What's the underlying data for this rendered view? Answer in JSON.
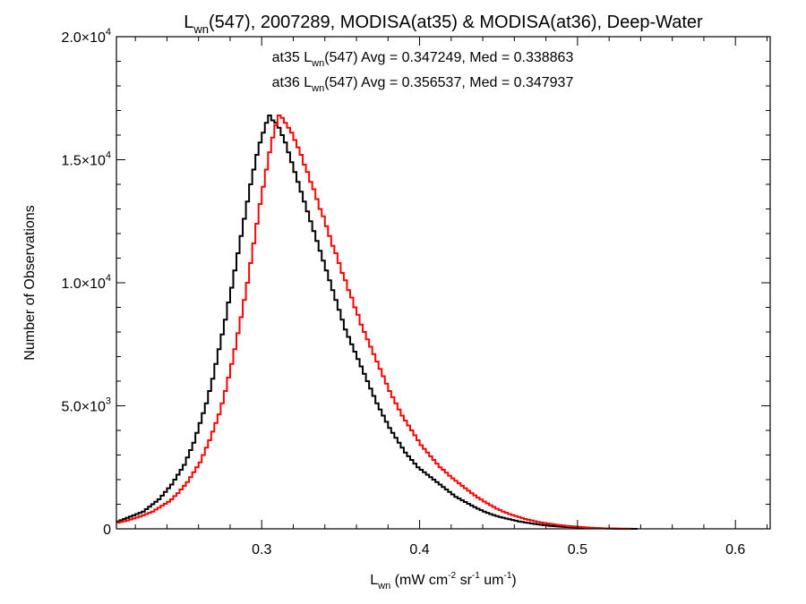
{
  "chart_data": {
    "type": "histogram-step",
    "title": {
      "base": "L",
      "sub": "wn",
      "rest": "(547), 2007289, MODISA(at35) & MODISA(at36), Deep-Water"
    },
    "xlabel": {
      "base": "L",
      "sub": "wn",
      "rest": " (mW cm",
      "sup1": "-2",
      "mid": " sr",
      "sup2": "-1",
      "mid2": " um",
      "sup3": "-1",
      "end": ")"
    },
    "ylabel": "Number of Observations",
    "xlim": [
      0.208,
      0.622
    ],
    "ylim": [
      0,
      20000
    ],
    "x_ticks": [
      {
        "value": 0.3,
        "label": "0.3"
      },
      {
        "value": 0.4,
        "label": "0.4"
      },
      {
        "value": 0.5,
        "label": "0.5"
      },
      {
        "value": 0.6,
        "label": "0.6"
      }
    ],
    "y_ticks": [
      {
        "value": 0,
        "mant": "0",
        "exp": ""
      },
      {
        "value": 5000,
        "mant": "5.0×10",
        "exp": "3"
      },
      {
        "value": 10000,
        "mant": "1.0×10",
        "exp": "4"
      },
      {
        "value": 15000,
        "mant": "1.5×10",
        "exp": "4"
      },
      {
        "value": 20000,
        "mant": "2.0×10",
        "exp": "4"
      }
    ],
    "annotations": [
      {
        "prefix": "at35 L",
        "sub": "wn",
        "rest": "(547) Avg = 0.347249, Med = 0.338863",
        "color": "#000000"
      },
      {
        "prefix": "at36 L",
        "sub": "wn",
        "rest": "(547) Avg = 0.356537, Med = 0.347937",
        "color": "#ff0000"
      }
    ],
    "bin_width": 0.002,
    "series": [
      {
        "color": "#000000",
        "bin_start": 0.208,
        "values": [
          300,
          350,
          400,
          450,
          500,
          550,
          600,
          650,
          700,
          800,
          900,
          1000,
          1100,
          1200,
          1350,
          1500,
          1650,
          1800,
          2000,
          2200,
          2400,
          2600,
          2900,
          3200,
          3500,
          3900,
          4300,
          4700,
          5100,
          5600,
          6100,
          6700,
          7300,
          7900,
          8500,
          9200,
          9800,
          10500,
          11200,
          11900,
          12600,
          13300,
          14000,
          14600,
          15200,
          15700,
          16100,
          16500,
          16800,
          16600,
          16500,
          16300,
          16000,
          15700,
          15300,
          14900,
          14500,
          14100,
          13700,
          13300,
          12900,
          12500,
          12100,
          11700,
          11300,
          10900,
          10500,
          10100,
          9700,
          9300,
          8900,
          8500,
          8100,
          7800,
          7500,
          7200,
          6900,
          6600,
          6300,
          6000,
          5700,
          5400,
          5100,
          4850,
          4600,
          4350,
          4100,
          3900,
          3700,
          3500,
          3300,
          3100,
          2950,
          2800,
          2650,
          2500,
          2400,
          2300,
          2200,
          2100,
          2000,
          1900,
          1800,
          1700,
          1600,
          1500,
          1400,
          1300,
          1230,
          1160,
          1090,
          1020,
          950,
          880,
          820,
          760,
          700,
          650,
          600,
          560,
          520,
          480,
          450,
          420,
          390,
          360,
          330,
          300,
          280,
          260,
          240,
          220,
          200,
          180,
          165,
          150,
          135,
          120,
          110,
          100,
          90,
          80,
          75,
          70,
          65,
          60,
          55,
          50,
          45,
          40,
          35,
          30,
          25,
          20,
          18,
          15,
          12,
          10,
          8,
          6,
          5,
          4,
          3,
          2,
          1
        ]
      },
      {
        "color": "#ff0000",
        "bin_start": 0.208,
        "values": [
          250,
          280,
          310,
          340,
          380,
          420,
          460,
          500,
          550,
          600,
          650,
          700,
          780,
          860,
          940,
          1020,
          1100,
          1200,
          1330,
          1450,
          1600,
          1750,
          1900,
          2100,
          2300,
          2500,
          2700,
          3000,
          3300,
          3600,
          3950,
          4300,
          4650,
          5100,
          5600,
          6150,
          6700,
          7300,
          7950,
          8600,
          9300,
          10000,
          10800,
          11600,
          12400,
          13200,
          13900,
          14600,
          15300,
          15900,
          16400,
          16800,
          16700,
          16500,
          16300,
          16100,
          15800,
          15500,
          15200,
          14800,
          14500,
          14100,
          13800,
          13400,
          13000,
          12700,
          12300,
          11900,
          11500,
          11200,
          10800,
          10400,
          10100,
          9700,
          9400,
          9000,
          8700,
          8300,
          8000,
          7700,
          7400,
          7100,
          6800,
          6500,
          6200,
          5900,
          5600,
          5350,
          5100,
          4850,
          4600,
          4400,
          4200,
          4000,
          3800,
          3600,
          3400,
          3250,
          3100,
          2950,
          2800,
          2650,
          2500,
          2400,
          2280,
          2160,
          2050,
          1950,
          1850,
          1750,
          1650,
          1550,
          1450,
          1360,
          1270,
          1190,
          1110,
          1030,
          960,
          890,
          820,
          760,
          700,
          650,
          600,
          560,
          520,
          480,
          440,
          400,
          370,
          340,
          310,
          280,
          260,
          240,
          220,
          200,
          180,
          165,
          150,
          135,
          120,
          110,
          100,
          90,
          80,
          70,
          60,
          52,
          45,
          38,
          32,
          26,
          20,
          16,
          12,
          9,
          6,
          4,
          3,
          2,
          1
        ]
      }
    ],
    "grid": false
  }
}
